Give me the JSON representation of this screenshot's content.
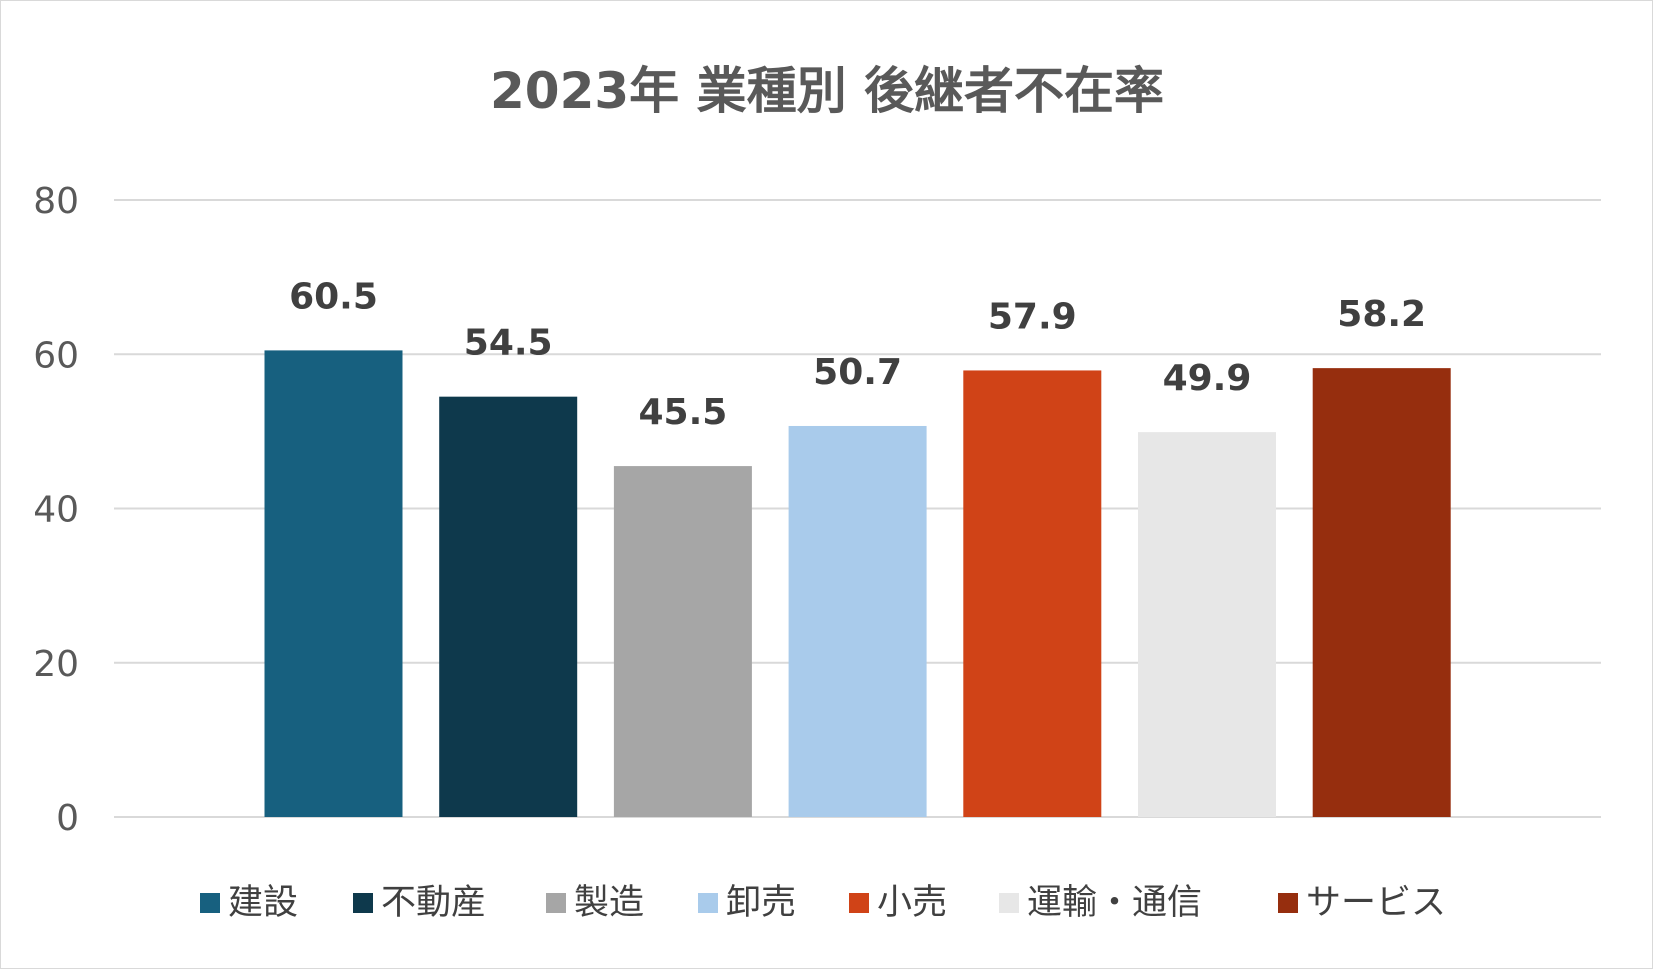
{
  "chart_data": {
    "type": "bar",
    "title": "2023年 業種別 後継者不在率",
    "categories": [
      "建設",
      "不動産",
      "製造",
      "卸売",
      "小売",
      "運輸・通信",
      "サービス"
    ],
    "values": [
      60.5,
      54.5,
      45.5,
      50.7,
      57.9,
      49.9,
      58.2
    ],
    "value_labels": [
      "60.5",
      "54.5",
      "45.5",
      "50.7",
      "57.9",
      "49.9",
      "58.2"
    ],
    "colors": [
      "#17607f",
      "#0e394c",
      "#a6a6a6",
      "#a9cbeb",
      "#d04317",
      "#e7e7e7",
      "#962e0e"
    ],
    "ylim": [
      0,
      80
    ],
    "yticks": [
      0,
      20,
      40,
      60,
      80
    ],
    "xlabel": "",
    "ylabel": "",
    "grid": true,
    "gridline_color": "#d9d9d9",
    "legend": "bottom"
  }
}
